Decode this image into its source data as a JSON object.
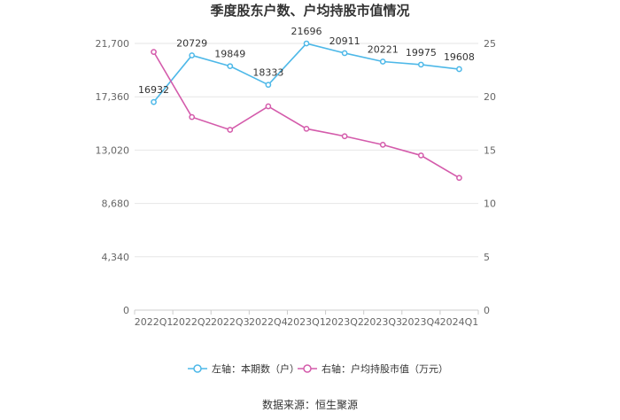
{
  "chart_data": {
    "type": "line",
    "title": "季度股东户数、户均持股市值情况",
    "categories": [
      "2022Q1",
      "2022Q2",
      "2022Q3",
      "2022Q4",
      "2023Q1",
      "2023Q2",
      "2023Q3",
      "2023Q4",
      "2024Q1"
    ],
    "series": [
      {
        "name": "左轴：本期数（户）",
        "axis": "left",
        "color": "#4db8e8",
        "values": [
          16932,
          20729,
          19849,
          18333,
          21696,
          20911,
          20221,
          19975,
          19608
        ],
        "show_labels": true
      },
      {
        "name": "右轴：户均持股市值（万元）",
        "axis": "right",
        "color": "#d45bab",
        "values": [
          24.2,
          18.1,
          16.9,
          19.1,
          17.0,
          16.3,
          15.5,
          14.5,
          12.4
        ],
        "show_labels": false
      }
    ],
    "y_left": {
      "ticks": [
        "0",
        "4,340",
        "8,680",
        "13,020",
        "17,360",
        "21,700"
      ],
      "values": [
        0,
        4340,
        8680,
        13020,
        17360,
        21700
      ],
      "lim": [
        0,
        21700
      ]
    },
    "y_right": {
      "ticks": [
        "0",
        "5",
        "10",
        "15",
        "20",
        "25"
      ],
      "values": [
        0,
        5,
        10,
        15,
        20,
        25
      ],
      "lim": [
        0,
        25
      ]
    },
    "grid": true,
    "legend_position": "bottom",
    "source": "数据来源：恒生聚源"
  }
}
